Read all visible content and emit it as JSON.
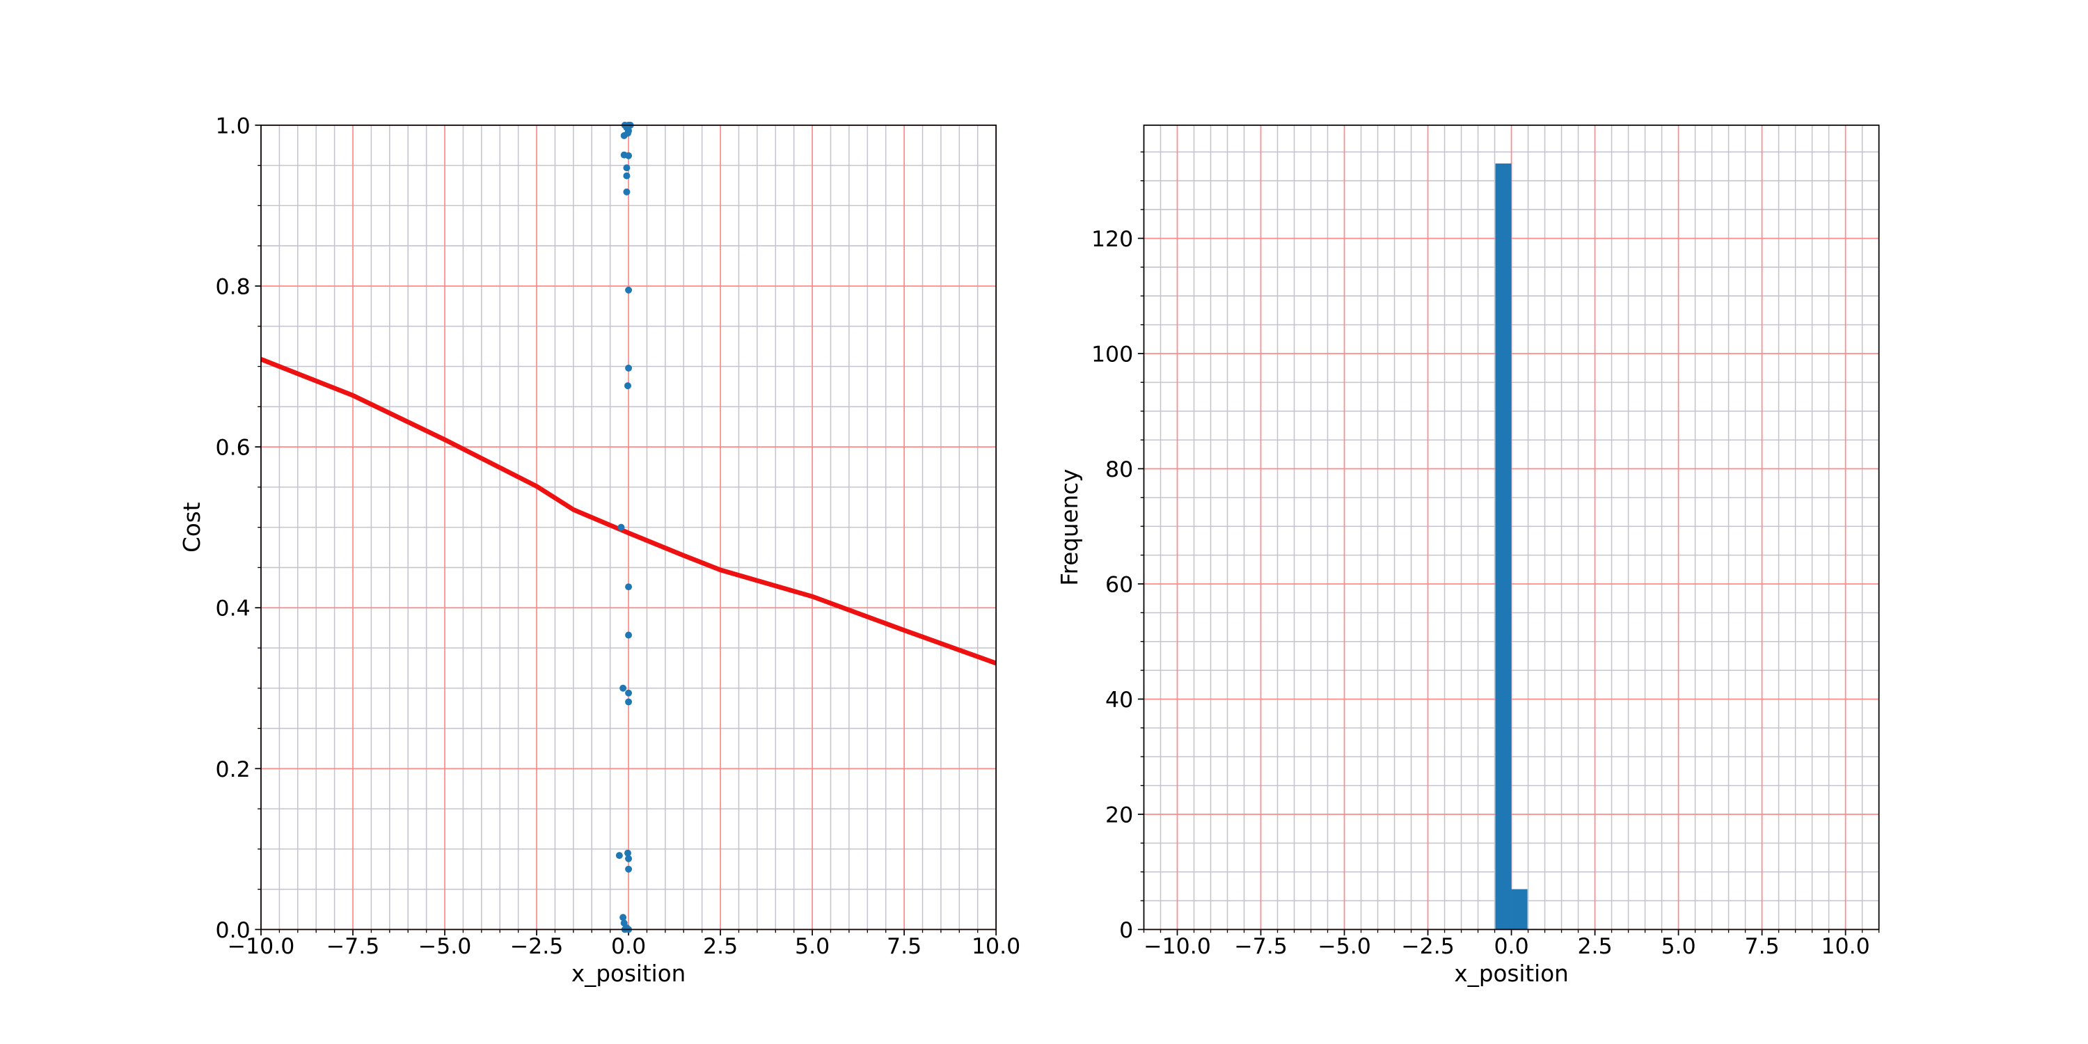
{
  "chart_data": [
    {
      "type": "scatter",
      "xlabel": "x_position",
      "ylabel": "Cost",
      "xlim": [
        -10,
        10
      ],
      "ylim": [
        0,
        1
      ],
      "xticks": [
        {
          "value": -10,
          "label": "−10.0"
        },
        {
          "value": -7.5,
          "label": "−7.5"
        },
        {
          "value": -5,
          "label": "−5.0"
        },
        {
          "value": -2.5,
          "label": "−2.5"
        },
        {
          "value": 0,
          "label": "0.0"
        },
        {
          "value": 2.5,
          "label": "2.5"
        },
        {
          "value": 5,
          "label": "5.0"
        },
        {
          "value": 7.5,
          "label": "7.5"
        },
        {
          "value": 10,
          "label": "10.0"
        }
      ],
      "yticks": [
        {
          "value": 0,
          "label": "0.0"
        },
        {
          "value": 0.2,
          "label": "0.2"
        },
        {
          "value": 0.4,
          "label": "0.4"
        },
        {
          "value": 0.6,
          "label": "0.6"
        },
        {
          "value": 0.8,
          "label": "0.8"
        },
        {
          "value": 1,
          "label": "1.0"
        }
      ],
      "grid": {
        "major_color": "#ff8a8a",
        "minor_color": "#c4c4d0",
        "minor_x_step": 0.5,
        "minor_y_step": 0.05
      },
      "points": {
        "color": "#1f77b4",
        "x": [
          -0.1,
          0.0,
          0.05,
          -0.05,
          0.0,
          -0.02,
          -0.12,
          -0.12,
          0.0,
          -0.05,
          -0.05,
          -0.05,
          0.0,
          0.0,
          -0.02,
          -0.2,
          0.0,
          0.0,
          -0.15,
          0.0,
          0.0,
          -0.25,
          -0.02,
          0.0,
          0.0,
          -0.15,
          -0.12,
          -0.05,
          -0.1,
          0.0
        ],
        "values": [
          1.0,
          1.0,
          1.0,
          0.997,
          0.993,
          0.99,
          0.987,
          0.963,
          0.962,
          0.947,
          0.937,
          0.917,
          0.795,
          0.698,
          0.676,
          0.5,
          0.426,
          0.366,
          0.3,
          0.294,
          0.283,
          0.092,
          0.095,
          0.088,
          0.075,
          0.015,
          0.008,
          0.002,
          0.0,
          0.0
        ]
      },
      "line": {
        "color": "#ee1111",
        "x": [
          -10,
          -7.5,
          -5,
          -2.5,
          -1.5,
          0,
          1.5,
          2.5,
          5,
          7.5,
          10
        ],
        "values": [
          0.709,
          0.664,
          0.609,
          0.551,
          0.522,
          0.493,
          0.465,
          0.447,
          0.414,
          0.372,
          0.331
        ]
      }
    },
    {
      "type": "histogram",
      "xlabel": "x_position",
      "ylabel": "Frequency",
      "xlim": [
        -11,
        11
      ],
      "ylim": [
        0,
        139.65
      ],
      "xticks": [
        {
          "value": -10,
          "label": "−10.0"
        },
        {
          "value": -7.5,
          "label": "−7.5"
        },
        {
          "value": -5,
          "label": "−5.0"
        },
        {
          "value": -2.5,
          "label": "−2.5"
        },
        {
          "value": 0,
          "label": "0.0"
        },
        {
          "value": 2.5,
          "label": "2.5"
        },
        {
          "value": 5,
          "label": "5.0"
        },
        {
          "value": 7.5,
          "label": "7.5"
        },
        {
          "value": 10,
          "label": "10.0"
        }
      ],
      "yticks": [
        0,
        20,
        40,
        60,
        80,
        100,
        120
      ],
      "grid": {
        "major_color": "#ff8a8a",
        "minor_color": "#c4c4d0",
        "minor_x_step": 0.5,
        "minor_y_step": 5
      },
      "color": "#1f77b4",
      "bins": [
        -0.48,
        0.0,
        0.48
      ],
      "values": [
        133,
        7
      ]
    }
  ]
}
